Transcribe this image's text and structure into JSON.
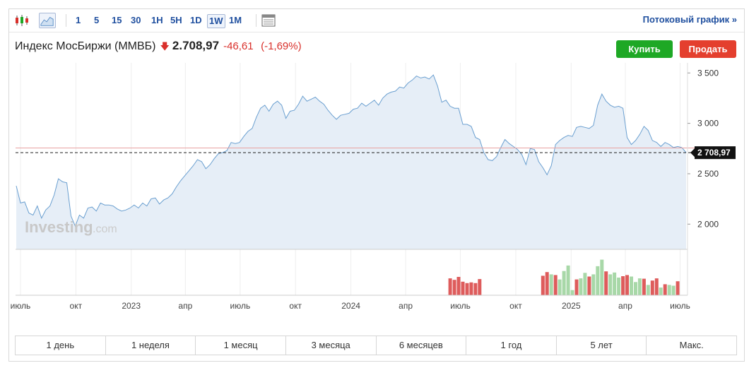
{
  "toolbar": {
    "periods": [
      "1",
      "5",
      "15",
      "30",
      "1H",
      "5H",
      "1D",
      "1W",
      "1M"
    ],
    "active_period": "1W",
    "stream_label": "Потоковый график »"
  },
  "header": {
    "name": "Индекс МосБиржи (ММВБ)",
    "price": "2.708,97",
    "change": "-46,61",
    "change_pct": "(-1,69%)"
  },
  "buttons": {
    "buy": "Купить",
    "sell": "Продать"
  },
  "watermark": {
    "brand": "Investing",
    "suffix": ".com"
  },
  "colors": {
    "line": "#6a9fd0",
    "area": "#e6eef7",
    "up": "#a8d8a8",
    "down": "#de5c5c",
    "ref_line": "#e8a0a0",
    "price_label_bg": "#111111"
  },
  "chart_data": {
    "type": "area",
    "ylim": [
      1750,
      3600
    ],
    "y_ticks": [
      "3 500",
      "3 000",
      "2 500",
      "2 000"
    ],
    "y_tick_values": [
      3500,
      3000,
      2500,
      2000
    ],
    "last_price_label": "2 708,97",
    "last_price": 2708.97,
    "ref_level": 2755.6,
    "x_tick_labels": [
      "июль",
      "окт",
      "2023",
      "апр",
      "июль",
      "окт",
      "2024",
      "апр",
      "июль",
      "окт",
      "2025",
      "апр",
      "июль"
    ],
    "x_tick_dates": [
      "2022-07-01",
      "2022-10-01",
      "2023-01-01",
      "2023-04-01",
      "2023-07-01",
      "2023-10-01",
      "2024-01-01",
      "2024-04-01",
      "2024-07-01",
      "2024-10-01",
      "2025-01-01",
      "2025-04-01",
      "2025-07-01"
    ],
    "series": [
      {
        "values": [
          [
            "2022-06-24",
            2380
          ],
          [
            "2022-07-01",
            2210
          ],
          [
            "2022-07-08",
            2220
          ],
          [
            "2022-07-15",
            2110
          ],
          [
            "2022-07-22",
            2090
          ],
          [
            "2022-07-29",
            2180
          ],
          [
            "2022-08-05",
            2060
          ],
          [
            "2022-08-12",
            2140
          ],
          [
            "2022-08-19",
            2180
          ],
          [
            "2022-08-26",
            2290
          ],
          [
            "2022-09-02",
            2450
          ],
          [
            "2022-09-09",
            2420
          ],
          [
            "2022-09-16",
            2410
          ],
          [
            "2022-09-23",
            2080
          ],
          [
            "2022-09-30",
            1980
          ],
          [
            "2022-10-07",
            2090
          ],
          [
            "2022-10-14",
            2060
          ],
          [
            "2022-10-21",
            2160
          ],
          [
            "2022-10-28",
            2170
          ],
          [
            "2022-11-04",
            2130
          ],
          [
            "2022-11-11",
            2210
          ],
          [
            "2022-11-18",
            2190
          ],
          [
            "2022-11-25",
            2190
          ],
          [
            "2022-12-02",
            2180
          ],
          [
            "2022-12-09",
            2150
          ],
          [
            "2022-12-16",
            2130
          ],
          [
            "2022-12-23",
            2140
          ],
          [
            "2022-12-30",
            2160
          ],
          [
            "2023-01-06",
            2190
          ],
          [
            "2023-01-13",
            2160
          ],
          [
            "2023-01-20",
            2210
          ],
          [
            "2023-01-27",
            2180
          ],
          [
            "2023-02-03",
            2250
          ],
          [
            "2023-02-10",
            2260
          ],
          [
            "2023-02-17",
            2200
          ],
          [
            "2023-02-24",
            2240
          ],
          [
            "2023-03-03",
            2260
          ],
          [
            "2023-03-10",
            2300
          ],
          [
            "2023-03-17",
            2370
          ],
          [
            "2023-03-24",
            2430
          ],
          [
            "2023-03-31",
            2480
          ],
          [
            "2023-04-07",
            2530
          ],
          [
            "2023-04-14",
            2580
          ],
          [
            "2023-04-21",
            2640
          ],
          [
            "2023-04-28",
            2620
          ],
          [
            "2023-05-05",
            2550
          ],
          [
            "2023-05-12",
            2590
          ],
          [
            "2023-05-19",
            2650
          ],
          [
            "2023-05-26",
            2700
          ],
          [
            "2023-06-02",
            2710
          ],
          [
            "2023-06-09",
            2730
          ],
          [
            "2023-06-16",
            2810
          ],
          [
            "2023-06-23",
            2800
          ],
          [
            "2023-06-30",
            2810
          ],
          [
            "2023-07-07",
            2870
          ],
          [
            "2023-07-14",
            2920
          ],
          [
            "2023-07-21",
            2950
          ],
          [
            "2023-07-28",
            3060
          ],
          [
            "2023-08-04",
            3150
          ],
          [
            "2023-08-11",
            3180
          ],
          [
            "2023-08-18",
            3120
          ],
          [
            "2023-08-25",
            3190
          ],
          [
            "2023-09-01",
            3220
          ],
          [
            "2023-09-08",
            3180
          ],
          [
            "2023-09-15",
            3050
          ],
          [
            "2023-09-22",
            3120
          ],
          [
            "2023-09-29",
            3130
          ],
          [
            "2023-10-06",
            3190
          ],
          [
            "2023-10-13",
            3270
          ],
          [
            "2023-10-20",
            3220
          ],
          [
            "2023-10-27",
            3240
          ],
          [
            "2023-11-03",
            3260
          ],
          [
            "2023-11-10",
            3220
          ],
          [
            "2023-11-17",
            3190
          ],
          [
            "2023-11-24",
            3130
          ],
          [
            "2023-12-01",
            3080
          ],
          [
            "2023-12-08",
            3040
          ],
          [
            "2023-12-15",
            3080
          ],
          [
            "2023-12-22",
            3090
          ],
          [
            "2023-12-29",
            3100
          ],
          [
            "2024-01-05",
            3140
          ],
          [
            "2024-01-12",
            3150
          ],
          [
            "2024-01-19",
            3200
          ],
          [
            "2024-01-26",
            3170
          ],
          [
            "2024-02-02",
            3200
          ],
          [
            "2024-02-09",
            3230
          ],
          [
            "2024-02-16",
            3180
          ],
          [
            "2024-02-23",
            3250
          ],
          [
            "2024-03-01",
            3290
          ],
          [
            "2024-03-08",
            3310
          ],
          [
            "2024-03-15",
            3320
          ],
          [
            "2024-03-22",
            3360
          ],
          [
            "2024-03-29",
            3350
          ],
          [
            "2024-04-05",
            3400
          ],
          [
            "2024-04-12",
            3430
          ],
          [
            "2024-04-19",
            3470
          ],
          [
            "2024-04-26",
            3450
          ],
          [
            "2024-05-03",
            3460
          ],
          [
            "2024-05-10",
            3440
          ],
          [
            "2024-05-17",
            3480
          ],
          [
            "2024-05-24",
            3370
          ],
          [
            "2024-05-31",
            3210
          ],
          [
            "2024-06-07",
            3230
          ],
          [
            "2024-06-14",
            3170
          ],
          [
            "2024-06-21",
            3150
          ],
          [
            "2024-06-28",
            3150
          ],
          [
            "2024-07-05",
            2990
          ],
          [
            "2024-07-12",
            2990
          ],
          [
            "2024-07-19",
            2970
          ],
          [
            "2024-07-26",
            2860
          ],
          [
            "2024-08-02",
            2840
          ],
          [
            "2024-08-09",
            2710
          ],
          [
            "2024-08-16",
            2640
          ],
          [
            "2024-08-23",
            2630
          ],
          [
            "2024-08-30",
            2670
          ],
          [
            "2024-09-06",
            2760
          ],
          [
            "2024-09-13",
            2840
          ],
          [
            "2024-09-20",
            2800
          ],
          [
            "2024-09-27",
            2770
          ],
          [
            "2024-10-04",
            2740
          ],
          [
            "2024-10-11",
            2690
          ],
          [
            "2024-10-18",
            2590
          ],
          [
            "2024-10-25",
            2750
          ],
          [
            "2024-11-01",
            2740
          ],
          [
            "2024-11-08",
            2620
          ],
          [
            "2024-11-15",
            2560
          ],
          [
            "2024-11-22",
            2490
          ],
          [
            "2024-11-29",
            2580
          ],
          [
            "2024-12-06",
            2790
          ],
          [
            "2024-12-13",
            2830
          ],
          [
            "2024-12-20",
            2860
          ],
          [
            "2024-12-27",
            2880
          ],
          [
            "2025-01-03",
            2870
          ],
          [
            "2025-01-10",
            2960
          ],
          [
            "2025-01-17",
            2970
          ],
          [
            "2025-01-24",
            2960
          ],
          [
            "2025-01-31",
            2950
          ],
          [
            "2025-02-07",
            2980
          ],
          [
            "2025-02-14",
            3180
          ],
          [
            "2025-02-21",
            3290
          ],
          [
            "2025-02-28",
            3220
          ],
          [
            "2025-03-07",
            3180
          ],
          [
            "2025-03-14",
            3160
          ],
          [
            "2025-03-21",
            3170
          ],
          [
            "2025-03-28",
            3150
          ],
          [
            "2025-04-04",
            2860
          ],
          [
            "2025-04-11",
            2790
          ],
          [
            "2025-04-18",
            2830
          ],
          [
            "2025-04-25",
            2890
          ],
          [
            "2025-05-02",
            2970
          ],
          [
            "2025-05-09",
            2930
          ],
          [
            "2025-05-16",
            2830
          ],
          [
            "2025-05-23",
            2810
          ],
          [
            "2025-05-30",
            2770
          ],
          [
            "2025-06-06",
            2810
          ],
          [
            "2025-06-13",
            2790
          ],
          [
            "2025-06-20",
            2760
          ],
          [
            "2025-06-27",
            2770
          ],
          [
            "2025-07-04",
            2760
          ],
          [
            "2025-07-11",
            2710
          ]
        ]
      }
    ],
    "volume": {
      "note_unit": "relative",
      "bars": [
        [
          "2024-06-14",
          0.46,
          "down"
        ],
        [
          "2024-06-21",
          0.42,
          "down"
        ],
        [
          "2024-06-28",
          0.5,
          "down"
        ],
        [
          "2024-07-05",
          0.37,
          "down"
        ],
        [
          "2024-07-12",
          0.33,
          "down"
        ],
        [
          "2024-07-19",
          0.35,
          "down"
        ],
        [
          "2024-07-26",
          0.33,
          "down"
        ],
        [
          "2024-08-02",
          0.44,
          "down"
        ],
        [
          "2024-11-15",
          0.53,
          "down"
        ],
        [
          "2024-11-22",
          0.63,
          "down"
        ],
        [
          "2024-11-29",
          0.57,
          "up"
        ],
        [
          "2024-12-06",
          0.55,
          "down"
        ],
        [
          "2024-12-13",
          0.43,
          "up"
        ],
        [
          "2024-12-20",
          0.66,
          "up"
        ],
        [
          "2024-12-27",
          0.81,
          "up"
        ],
        [
          "2025-01-03",
          0.14,
          "up"
        ],
        [
          "2025-01-10",
          0.43,
          "down"
        ],
        [
          "2025-01-17",
          0.46,
          "up"
        ],
        [
          "2025-01-24",
          0.61,
          "up"
        ],
        [
          "2025-01-31",
          0.51,
          "down"
        ],
        [
          "2025-02-07",
          0.57,
          "up"
        ],
        [
          "2025-02-14",
          0.79,
          "up"
        ],
        [
          "2025-02-21",
          0.97,
          "up"
        ],
        [
          "2025-02-28",
          0.65,
          "down"
        ],
        [
          "2025-03-07",
          0.57,
          "up"
        ],
        [
          "2025-03-14",
          0.62,
          "up"
        ],
        [
          "2025-03-21",
          0.48,
          "up"
        ],
        [
          "2025-03-28",
          0.52,
          "down"
        ],
        [
          "2025-04-04",
          0.55,
          "down"
        ],
        [
          "2025-04-11",
          0.51,
          "up"
        ],
        [
          "2025-04-18",
          0.36,
          "up"
        ],
        [
          "2025-04-25",
          0.46,
          "up"
        ],
        [
          "2025-05-02",
          0.45,
          "down"
        ],
        [
          "2025-05-09",
          0.28,
          "up"
        ],
        [
          "2025-05-16",
          0.4,
          "down"
        ],
        [
          "2025-05-23",
          0.46,
          "down"
        ],
        [
          "2025-05-30",
          0.21,
          "up"
        ],
        [
          "2025-06-06",
          0.3,
          "down"
        ],
        [
          "2025-06-13",
          0.28,
          "up"
        ],
        [
          "2025-06-20",
          0.26,
          "up"
        ],
        [
          "2025-06-27",
          0.38,
          "down"
        ]
      ]
    }
  },
  "ranges": [
    "1 день",
    "1 неделя",
    "1 месяц",
    "3 месяца",
    "6 месяцев",
    "1 год",
    "5 лет",
    "Макс."
  ]
}
